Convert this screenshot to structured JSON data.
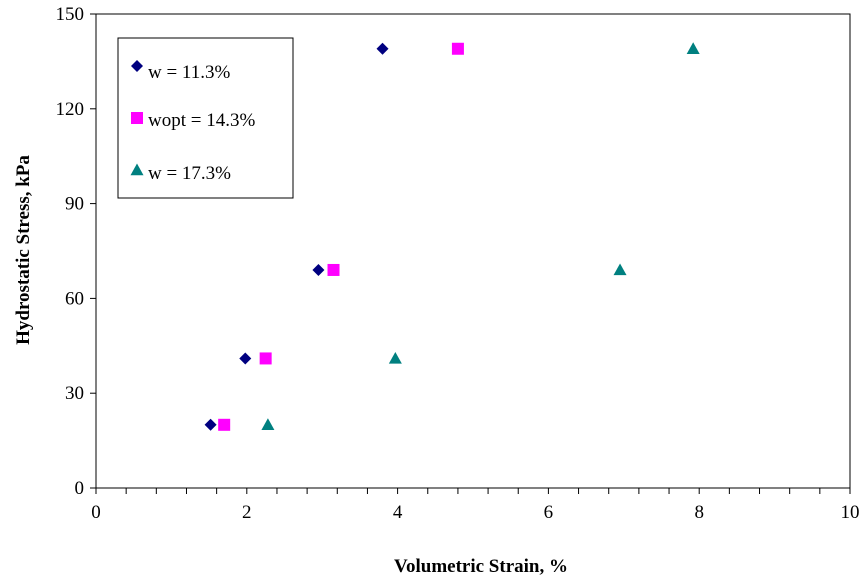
{
  "chart_data": {
    "type": "scatter",
    "title": "",
    "xlabel": "Volumetric Strain, %",
    "ylabel": "Hydrostatic Stress, kPa",
    "xlim": [
      0,
      10
    ],
    "ylim": [
      0,
      150
    ],
    "x_ticks": [
      "0",
      "2",
      "4",
      "6",
      "8",
      "10"
    ],
    "y_ticks": [
      "0",
      "30",
      "60",
      "90",
      "120",
      "150"
    ],
    "grid": false,
    "legend_position": "top-left",
    "series": [
      {
        "name": "w = 11.3%",
        "marker": "diamond",
        "color": "#000080",
        "points": [
          {
            "x": 1.52,
            "y": 20
          },
          {
            "x": 1.98,
            "y": 41
          },
          {
            "x": 2.95,
            "y": 69
          },
          {
            "x": 3.8,
            "y": 139
          }
        ]
      },
      {
        "name": "wopt = 14.3%",
        "marker": "square",
        "color": "#FF00FF",
        "points": [
          {
            "x": 1.7,
            "y": 20
          },
          {
            "x": 2.25,
            "y": 41
          },
          {
            "x": 3.15,
            "y": 69
          },
          {
            "x": 4.8,
            "y": 139
          }
        ]
      },
      {
        "name": "w = 17.3%",
        "marker": "triangle",
        "color": "#008080",
        "points": [
          {
            "x": 2.28,
            "y": 20
          },
          {
            "x": 3.97,
            "y": 41
          },
          {
            "x": 6.95,
            "y": 69
          },
          {
            "x": 7.92,
            "y": 139
          }
        ]
      }
    ]
  }
}
